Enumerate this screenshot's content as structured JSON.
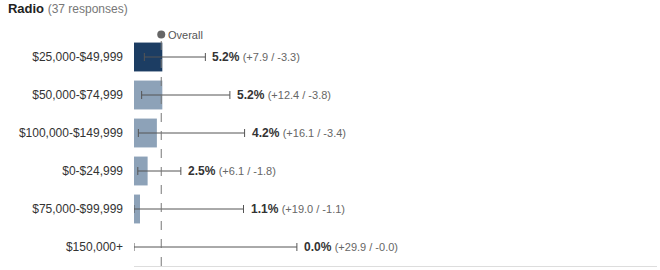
{
  "chart_data": {
    "type": "bar",
    "title": "Radio",
    "subtitle": "(37 responses)",
    "orientation": "horizontal",
    "categories": [
      "$25,000-$49,999",
      "$50,000-$74,999",
      "$100,000-$149,999",
      "$0-$24,999",
      "$75,000-$99,999",
      "$150,000+"
    ],
    "values": [
      5.2,
      5.2,
      4.2,
      2.5,
      1.1,
      0.0
    ],
    "value_labels": [
      "5.2%",
      "5.2%",
      "4.2%",
      "2.5%",
      "1.1%",
      "0.0%"
    ],
    "error_plus": [
      7.9,
      12.4,
      16.1,
      6.1,
      19.0,
      29.9
    ],
    "error_minus": [
      3.3,
      3.8,
      3.4,
      1.8,
      1.1,
      0.0
    ],
    "error_labels": [
      "(+7.9 / -3.3)",
      "(+12.4 / -3.8)",
      "(+16.1 / -3.4)",
      "(+6.1 / -1.8)",
      "(+19.0 / -1.1)",
      "(+29.9 / -0.0)"
    ],
    "colors": [
      "#1c3d63",
      "#8da2b8",
      "#8da2b8",
      "#8da2b8",
      "#8da2b8",
      "#8da2b8"
    ],
    "overall": {
      "label": "Overall",
      "value": 5.0
    },
    "xlim": [
      0,
      96
    ],
    "grid": false,
    "tick_labels": "y",
    "data_labels": true
  }
}
